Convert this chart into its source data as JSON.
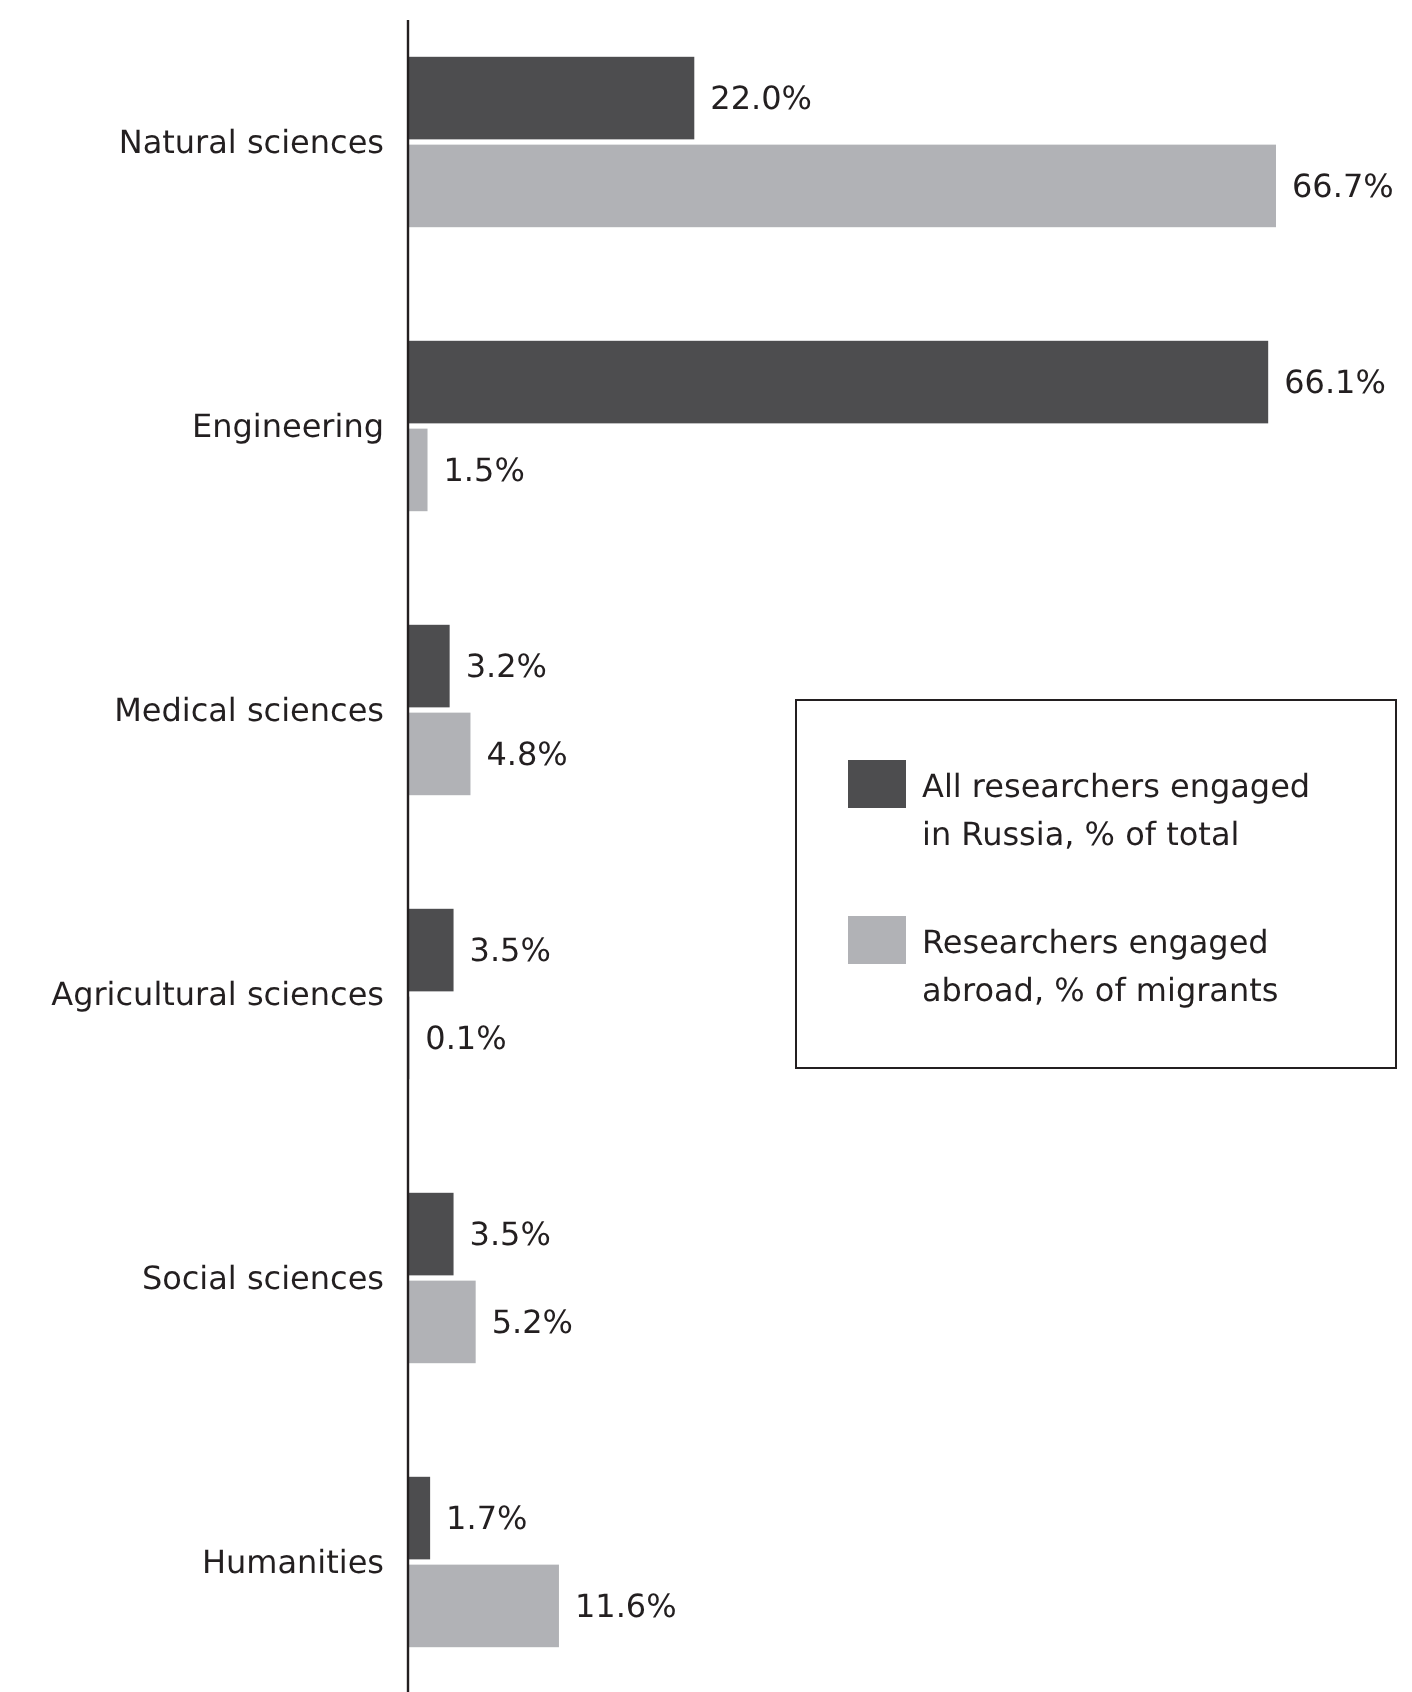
{
  "chart_data": {
    "type": "bar",
    "orientation": "horizontal",
    "categories": [
      "Natural sciences",
      "Engineering",
      "Medical sciences",
      "Agricultural sciences",
      "Social sciences",
      "Humanities"
    ],
    "series": [
      {
        "name": "All researchers engaged in Russia, % of total",
        "color": "#4d4d4f",
        "values": [
          22.0,
          66.1,
          3.2,
          3.5,
          3.5,
          1.7
        ],
        "value_labels": [
          "22.0%",
          "66.1%",
          "3.2%",
          "3.5%",
          "3.5%",
          "1.7%"
        ]
      },
      {
        "name": "Researchers engaged abroad, % of migrants",
        "color": "#b1b2b6",
        "values": [
          66.7,
          1.5,
          4.8,
          0.1,
          5.2,
          11.6
        ],
        "value_labels": [
          "66.7%",
          "1.5%",
          "4.8%",
          "0.1%",
          "5.2%",
          "11.6%"
        ]
      }
    ],
    "legend": "right"
  }
}
